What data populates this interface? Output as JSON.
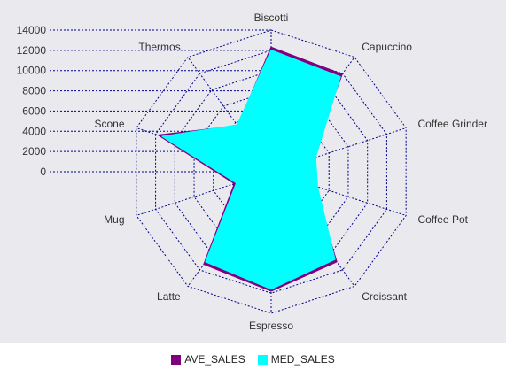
{
  "chart_data": {
    "type": "radar",
    "categories": [
      "Biscotti",
      "Capuccino",
      "Coffee Grinder",
      "Coffee Pot",
      "Croissant",
      "Espresso",
      "Latte",
      "Mug",
      "Scone",
      "Thermos"
    ],
    "series": [
      {
        "name": "AVE_SALES",
        "values": [
          12300,
          11900,
          4100,
          4400,
          11000,
          11800,
          11300,
          3800,
          11700,
          5600
        ]
      },
      {
        "name": "MED_SALES",
        "values": [
          12000,
          11600,
          4600,
          4800,
          10700,
          11600,
          11000,
          3600,
          11300,
          5700
        ]
      }
    ],
    "r_ticks": [
      "0",
      "2000",
      "4000",
      "6000",
      "8000",
      "10000",
      "12000",
      "14000"
    ],
    "rlim": [
      0,
      14000
    ],
    "grid": true,
    "legend_position": "bottom",
    "colors": {
      "AVE_SALES": "#800080",
      "MED_SALES": "#00ffff",
      "grid": "#00008b",
      "background": "#eaeaee"
    }
  },
  "legend": {
    "items": [
      {
        "label": "AVE_SALES",
        "color": "#800080"
      },
      {
        "label": "MED_SALES",
        "color": "#00ffff"
      }
    ]
  }
}
